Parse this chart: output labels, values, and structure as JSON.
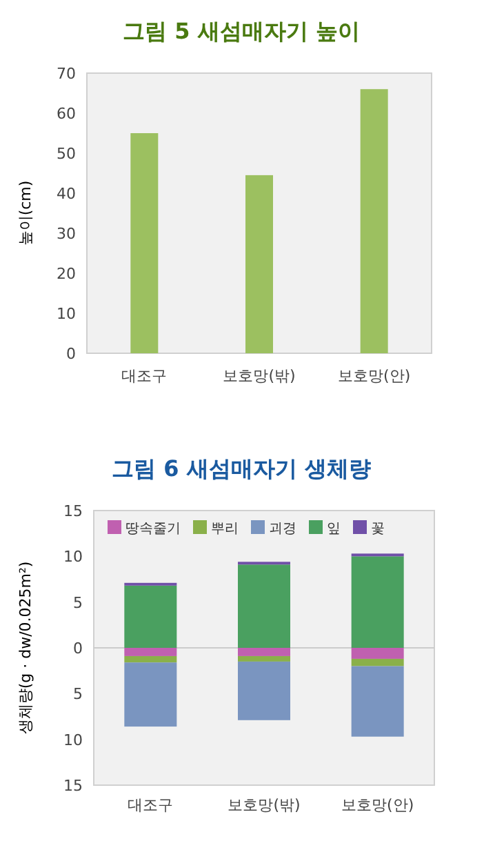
{
  "chart_data": [
    {
      "type": "bar",
      "title": "그림 5 새섬매자기 높이",
      "ylabel": "높이(cm)",
      "categories": [
        "대조구",
        "보호망(밖)",
        "보호망(안)"
      ],
      "values": [
        55,
        44.5,
        66
      ],
      "color": "#9cc060",
      "ylim": [
        0,
        70
      ],
      "yticks": [
        0,
        10,
        20,
        30,
        40,
        50,
        60,
        70
      ]
    },
    {
      "type": "bar",
      "title": "그림 6 새섬매자기 생체량",
      "ylabel": "생체량(g · dw/0.025m²)",
      "categories": [
        "대조구",
        "보호망(밖)",
        "보호망(안)"
      ],
      "stacked": true,
      "legend": "top",
      "series": [
        {
          "name": "땅속줄기",
          "color": "#c060b0",
          "values": [
            -0.9,
            -0.9,
            -1.2
          ]
        },
        {
          "name": "뿌리",
          "color": "#8ab04a",
          "values": [
            -0.7,
            -0.6,
            -0.8
          ]
        },
        {
          "name": "괴경",
          "color": "#7a95c0",
          "values": [
            -7.0,
            -6.4,
            -7.7
          ]
        },
        {
          "name": "잎",
          "color": "#4aa060",
          "values": [
            6.8,
            9.1,
            10.0
          ]
        },
        {
          "name": "꽃",
          "color": "#7050a8",
          "values": [
            0.3,
            0.3,
            0.3
          ]
        }
      ],
      "ylim": [
        -15,
        15
      ],
      "yticks": [
        {
          "value": -15,
          "label": "15"
        },
        {
          "value": -10,
          "label": "10"
        },
        {
          "value": -5,
          "label": "5"
        },
        0,
        5,
        10,
        15
      ],
      "ref_lines": [
        {
          "axis": "y",
          "value": 0,
          "color": "#cccccc"
        }
      ]
    }
  ]
}
